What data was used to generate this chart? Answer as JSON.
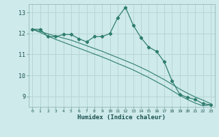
{
  "xlabel": "Humidex (Indice chaleur)",
  "bg_color": "#ceeaea",
  "grid_color": "#b8d4d4",
  "line_color": "#2e7d6e",
  "x_values": [
    0,
    1,
    2,
    3,
    4,
    5,
    6,
    7,
    8,
    9,
    10,
    11,
    12,
    13,
    14,
    15,
    16,
    17,
    18,
    19,
    20,
    21,
    22,
    23
  ],
  "y_main": [
    12.2,
    12.2,
    11.85,
    11.85,
    11.95,
    11.95,
    11.75,
    11.6,
    11.85,
    11.85,
    12.0,
    12.75,
    13.25,
    12.4,
    11.8,
    11.35,
    11.15,
    10.65,
    9.75,
    9.1,
    8.95,
    8.85,
    8.65,
    8.6
  ],
  "y_trend1": [
    12.2,
    12.1,
    11.98,
    11.88,
    11.78,
    11.68,
    11.55,
    11.42,
    11.28,
    11.15,
    11.0,
    10.85,
    10.7,
    10.55,
    10.38,
    10.2,
    10.0,
    9.8,
    9.58,
    9.35,
    9.15,
    8.97,
    8.82,
    8.65
  ],
  "y_trend2": [
    12.2,
    12.05,
    11.88,
    11.72,
    11.58,
    11.44,
    11.3,
    11.16,
    11.02,
    10.88,
    10.73,
    10.57,
    10.42,
    10.26,
    10.08,
    9.9,
    9.7,
    9.5,
    9.28,
    9.05,
    8.85,
    8.68,
    8.55,
    8.6
  ],
  "xlim": [
    -0.5,
    23.5
  ],
  "ylim": [
    8.5,
    13.4
  ],
  "yticks": [
    9,
    10,
    11,
    12,
    13
  ],
  "xticks": [
    0,
    1,
    2,
    3,
    4,
    5,
    6,
    7,
    8,
    9,
    10,
    11,
    12,
    13,
    14,
    15,
    16,
    17,
    18,
    19,
    20,
    21,
    22,
    23
  ]
}
